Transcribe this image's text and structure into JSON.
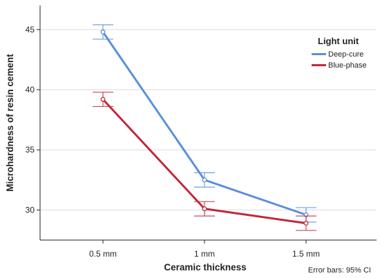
{
  "chart_data": {
    "type": "line",
    "categories": [
      "0.5 mm",
      "1 mm",
      "1.5 mm"
    ],
    "xlabel": "Ceramic thickness",
    "ylabel": "Microhardness of resin cement",
    "ylim": [
      27.5,
      47.0
    ],
    "yticks": [
      30,
      35,
      40,
      45
    ],
    "grid": "horizontal",
    "legend": {
      "title": "Light unit",
      "placement": "top-right"
    },
    "series": [
      {
        "name": "Deep-cure",
        "color": "#5b8fdc",
        "values": [
          44.8,
          32.5,
          29.6
        ],
        "ci_low": [
          44.2,
          31.9,
          29.0
        ],
        "ci_high": [
          45.4,
          33.1,
          30.2
        ]
      },
      {
        "name": "Blue-phase",
        "color": "#c0283c",
        "values": [
          39.2,
          30.1,
          28.9
        ],
        "ci_low": [
          38.6,
          29.5,
          28.3
        ],
        "ci_high": [
          39.8,
          30.7,
          29.5
        ]
      }
    ],
    "annotation": "Error bars: 95% CI"
  }
}
